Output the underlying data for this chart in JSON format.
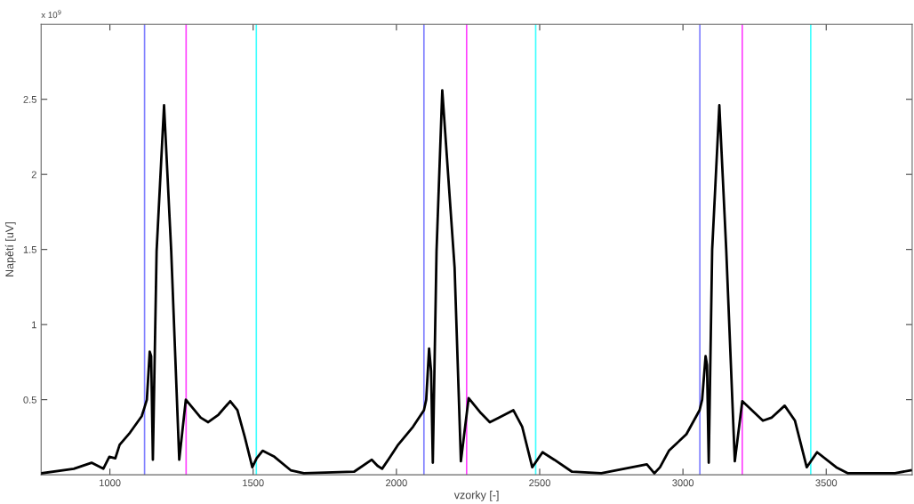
{
  "chart_data": {
    "type": "line",
    "xlabel": "vzorky [-]",
    "ylabel": "Napětí [uV]",
    "annotations": [
      "x 10$^{9}$"
    ],
    "x": [
      761,
      874,
      936,
      977,
      998,
      1019,
      1034,
      1070,
      1111,
      1121,
      1129,
      1139,
      1144,
      1150,
      1163,
      1189,
      1214,
      1242,
      1265,
      1317,
      1343,
      1379,
      1420,
      1445,
      1471,
      1497,
      1512,
      1533,
      1574,
      1631,
      1677,
      1852,
      1914,
      1934,
      1950,
      1975,
      2006,
      2058,
      2096,
      2104,
      2114,
      2121,
      2127,
      2140,
      2160,
      2203,
      2225,
      2252,
      2295,
      2326,
      2357,
      2408,
      2439,
      2474,
      2510,
      2551,
      2613,
      2715,
      2874,
      2900,
      2920,
      2951,
      3012,
      3058,
      3067,
      3079,
      3084,
      3090,
      3102,
      3127,
      3151,
      3181,
      3207,
      3279,
      3309,
      3355,
      3391,
      3432,
      3468,
      3535,
      3576,
      3740,
      3795
    ],
    "series": [
      {
        "color": "#000000",
        "values": [
          0.01,
          0.04,
          0.08,
          0.04,
          0.12,
          0.11,
          0.2,
          0.28,
          0.39,
          0.45,
          0.5,
          0.82,
          0.79,
          0.1,
          1.49,
          2.46,
          1.49,
          0.1,
          0.5,
          0.38,
          0.35,
          0.4,
          0.49,
          0.43,
          0.25,
          0.05,
          0.11,
          0.16,
          0.12,
          0.03,
          0.01,
          0.02,
          0.1,
          0.06,
          0.04,
          0.11,
          0.2,
          0.32,
          0.43,
          0.5,
          0.84,
          0.69,
          0.08,
          1.49,
          2.56,
          1.38,
          0.09,
          0.51,
          0.41,
          0.35,
          0.38,
          0.43,
          0.32,
          0.05,
          0.15,
          0.1,
          0.02,
          0.01,
          0.07,
          0.01,
          0.05,
          0.16,
          0.27,
          0.43,
          0.5,
          0.79,
          0.73,
          0.08,
          1.5,
          2.46,
          1.5,
          0.09,
          0.49,
          0.36,
          0.38,
          0.46,
          0.36,
          0.05,
          0.15,
          0.05,
          0.01,
          0.01,
          0.03
        ]
      }
    ],
    "xlim": [
      760,
      3800
    ],
    "ylim": [
      0,
      3
    ],
    "xticks": [
      1000,
      1500,
      2000,
      2500,
      3000,
      3500
    ],
    "yticks": [
      0.5,
      1,
      1.5,
      2,
      2.5
    ],
    "ref_lines": [
      {
        "axis": "x",
        "value": 1121,
        "color": "#7f7fff"
      },
      {
        "axis": "x",
        "value": 1266,
        "color": "#ff40ff"
      },
      {
        "axis": "x",
        "value": 1511,
        "color": "#40ffff"
      },
      {
        "axis": "x",
        "value": 2096,
        "color": "#7f7fff"
      },
      {
        "axis": "x",
        "value": 2245,
        "color": "#ff40ff"
      },
      {
        "axis": "x",
        "value": 2486,
        "color": "#40ffff"
      },
      {
        "axis": "x",
        "value": 3059,
        "color": "#7f7fff"
      },
      {
        "axis": "x",
        "value": 3207,
        "color": "#ff40ff"
      },
      {
        "axis": "x",
        "value": 3446,
        "color": "#40ffff"
      }
    ],
    "grid": false,
    "legend": false,
    "marker": "none",
    "line_style": "solid"
  }
}
